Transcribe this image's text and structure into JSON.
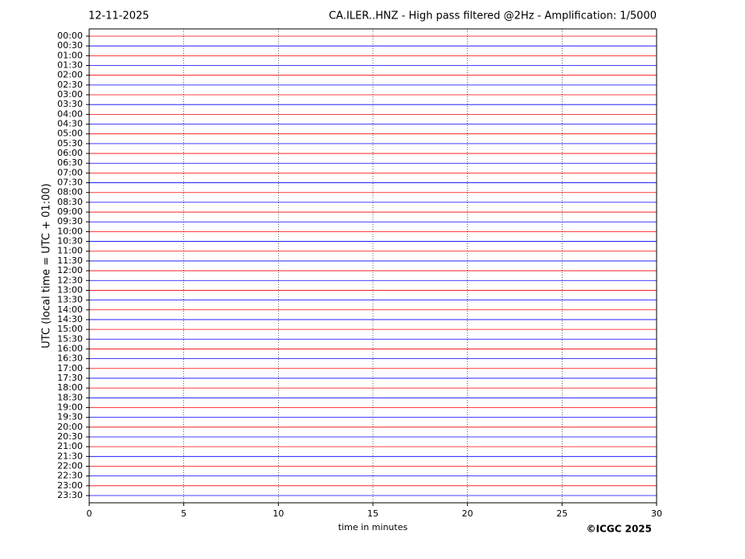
{
  "chart_data": {
    "type": "helicorder",
    "date": "12-11-2025",
    "title": "CA.ILER..HNZ - High pass filtered @2Hz - Amplification: 1/5000",
    "categories": [
      "00:00",
      "00:30",
      "01:00",
      "01:30",
      "02:00",
      "02:30",
      "03:00",
      "03:30",
      "04:00",
      "04:30",
      "05:00",
      "05:30",
      "06:00",
      "06:30",
      "07:00",
      "07:30",
      "08:00",
      "08:30",
      "09:00",
      "09:30",
      "10:00",
      "10:30",
      "11:00",
      "11:30",
      "12:00",
      "12:30",
      "13:00",
      "13:30",
      "14:00",
      "14:30",
      "15:00",
      "15:30",
      "16:00",
      "16:30",
      "17:00",
      "17:30",
      "18:00",
      "18:30",
      "19:00",
      "19:30",
      "20:00",
      "20:30",
      "21:00",
      "21:30",
      "22:00",
      "22:30",
      "23:00",
      "23:30"
    ],
    "colors": [
      "#ff0000",
      "#0000ff"
    ],
    "xlabel": "time in minutes",
    "ylabel": "UTC (local time = UTC + 01:00)",
    "xlim": [
      0,
      30
    ],
    "xticks": [
      0,
      5,
      10,
      15,
      20,
      25,
      30
    ],
    "grid": true,
    "copyright": "©ICGC 2025"
  }
}
